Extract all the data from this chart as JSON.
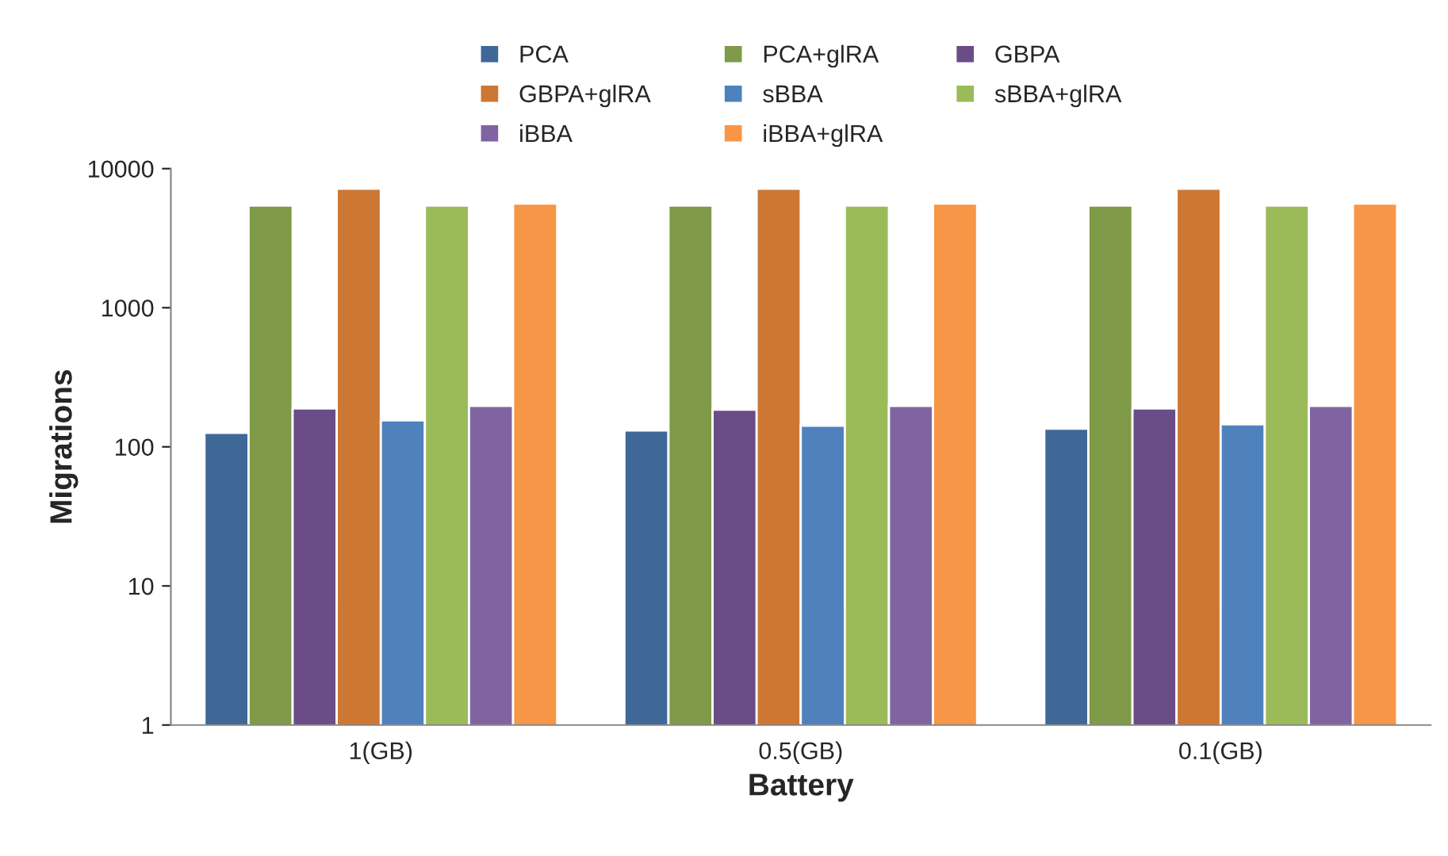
{
  "chart_data": {
    "type": "bar",
    "xlabel": "Battery",
    "ylabel": "Migrations",
    "categories": [
      "1(GB)",
      "0.5(GB)",
      "0.1(GB)"
    ],
    "series": [
      {
        "name": "PCA",
        "color": "#3f6898",
        "values": [
          126,
          131,
          135
        ]
      },
      {
        "name": "PCA+glRA",
        "color": "#7f9a48",
        "values": [
          5420,
          5420,
          5420
        ]
      },
      {
        "name": "GBPA",
        "color": "#6a4c86",
        "values": [
          189,
          185,
          189
        ]
      },
      {
        "name": "GBPA+glRA",
        "color": "#cd7734",
        "values": [
          7160,
          7160,
          7160
        ]
      },
      {
        "name": "sBBA",
        "color": "#4f81bd",
        "values": [
          155,
          142,
          145
        ]
      },
      {
        "name": "sBBA+glRA",
        "color": "#9bbb59",
        "values": [
          5420,
          5420,
          5420
        ]
      },
      {
        "name": "iBBA",
        "color": "#8064a2",
        "values": [
          197,
          197,
          197
        ]
      },
      {
        "name": "iBBA+glRA",
        "color": "#f79646",
        "values": [
          5610,
          5610,
          5610
        ]
      }
    ],
    "log": "y",
    "ylim": [
      1,
      10000
    ],
    "yticks": [
      1,
      10,
      100,
      1000,
      10000
    ],
    "grid": false,
    "legend": "top"
  }
}
